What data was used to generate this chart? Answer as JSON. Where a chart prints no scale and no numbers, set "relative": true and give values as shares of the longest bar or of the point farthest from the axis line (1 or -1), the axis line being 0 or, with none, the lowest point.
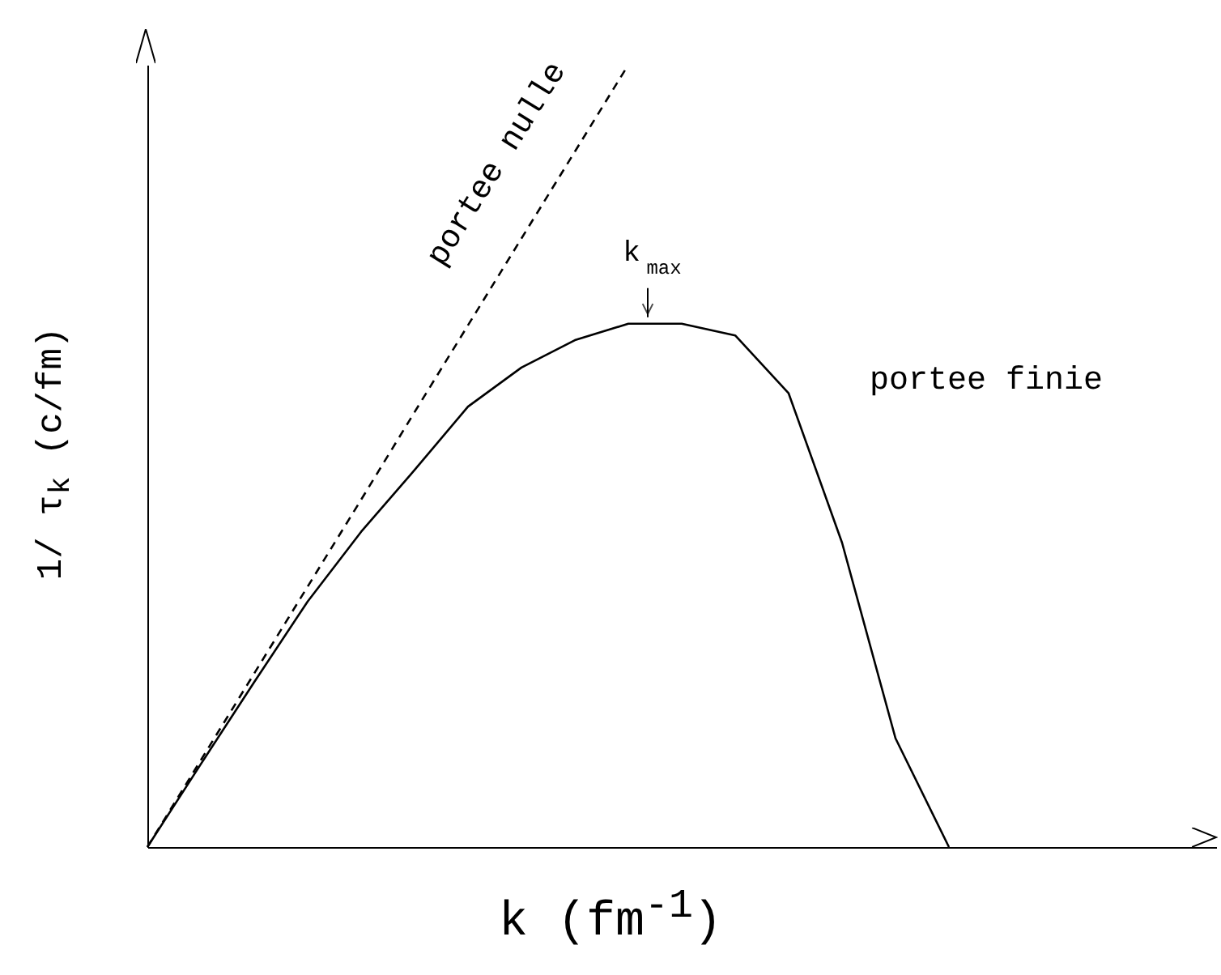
{
  "chart_data": {
    "type": "line",
    "relative": true,
    "xlabel": "k (fm$^{-1}$)",
    "ylabel": "1/ τ$_{k}$   (c/fm)",
    "grid": false,
    "legend": false,
    "marker": "none",
    "categories": [
      null,
      null,
      null,
      null,
      null,
      null,
      null,
      null,
      null,
      null,
      null,
      null,
      null,
      null,
      null,
      null,
      null,
      null,
      null,
      null,
      null
    ],
    "series": [
      {
        "name": "portee nulle",
        "color": "#000000",
        "line_style": "dashed",
        "values": [
          0,
          0.111,
          0.222,
          0.333,
          0.444,
          0.556,
          0.667,
          0.778,
          0.889,
          1,
          null,
          null,
          null,
          null,
          null,
          null,
          null,
          null,
          null,
          null,
          null
        ]
      },
      {
        "name": "portee finie",
        "color": "#000000",
        "line_style": "solid",
        "values": [
          0,
          0.106,
          0.211,
          0.314,
          0.403,
          0.482,
          0.563,
          0.613,
          0.648,
          0.669,
          0.669,
          0.654,
          0.58,
          0.389,
          0.139,
          0,
          null,
          null,
          null,
          null,
          null
        ]
      }
    ],
    "annotations": [
      "k$_{max}$"
    ]
  }
}
